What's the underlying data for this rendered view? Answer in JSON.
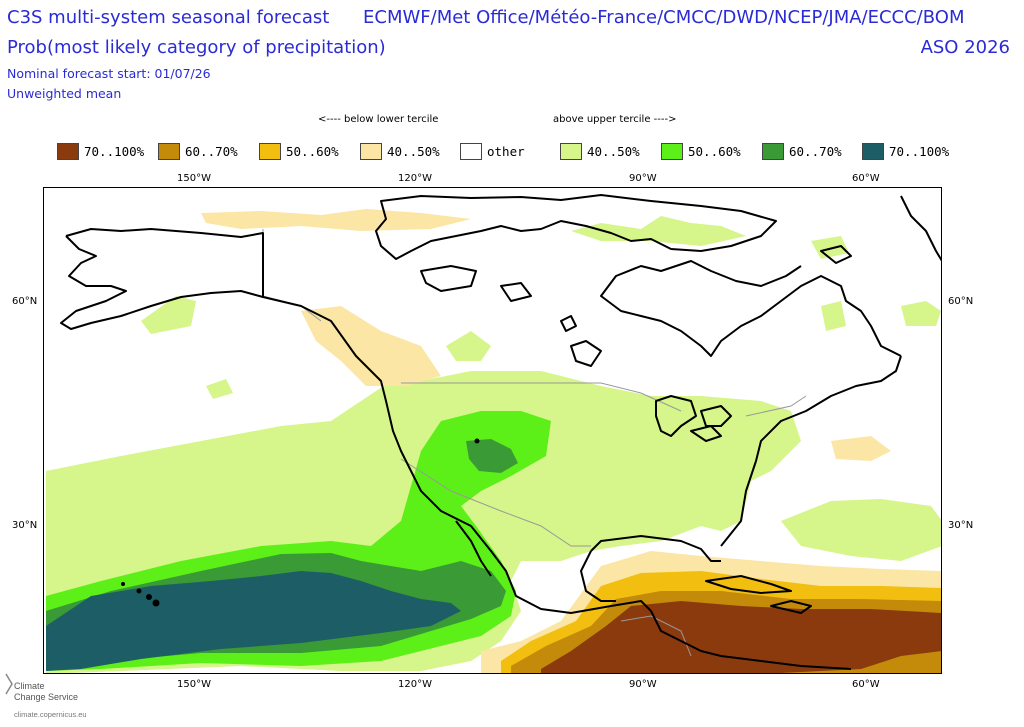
{
  "header": {
    "title": "C3S multi-system seasonal forecast",
    "systems": "ECMWF/Met Office/Météo-France/CMCC/DWD/NCEP/JMA/ECCC/BOM",
    "subtitle": "Prob(most likely category of precipitation)",
    "period": "ASO 2026",
    "start": "Nominal forecast start: 01/07/26",
    "mean": "Unweighted mean"
  },
  "legend": {
    "below_label": "<---- below lower tercile",
    "above_label": "above upper tercile ---->",
    "items": [
      {
        "label": "70..100%",
        "color": "#8b3a0e"
      },
      {
        "label": "60..70%",
        "color": "#c48a0a"
      },
      {
        "label": "50..60%",
        "color": "#f2be0f"
      },
      {
        "label": "40..50%",
        "color": "#fbe6a6"
      },
      {
        "label": "other",
        "color": "#ffffff"
      },
      {
        "label": "40..50%",
        "color": "#d6f58a"
      },
      {
        "label": "50..60%",
        "color": "#5cf018"
      },
      {
        "label": "60..70%",
        "color": "#3a9a35"
      },
      {
        "label": "70..100%",
        "color": "#1d5e66"
      }
    ]
  },
  "axes": {
    "top_lon": [
      "150°W",
      "120°W",
      "90°W",
      "60°W"
    ],
    "bottom_lon": [
      "150°W",
      "120°W",
      "90°W",
      "60°W"
    ],
    "left_lat": [
      "60°N",
      "30°N"
    ],
    "right_lat": [
      "60°N",
      "30°N"
    ]
  },
  "footer": {
    "logo_line1": "Climate",
    "logo_line2": "Change Service",
    "url": "climate.copernicus.eu"
  }
}
